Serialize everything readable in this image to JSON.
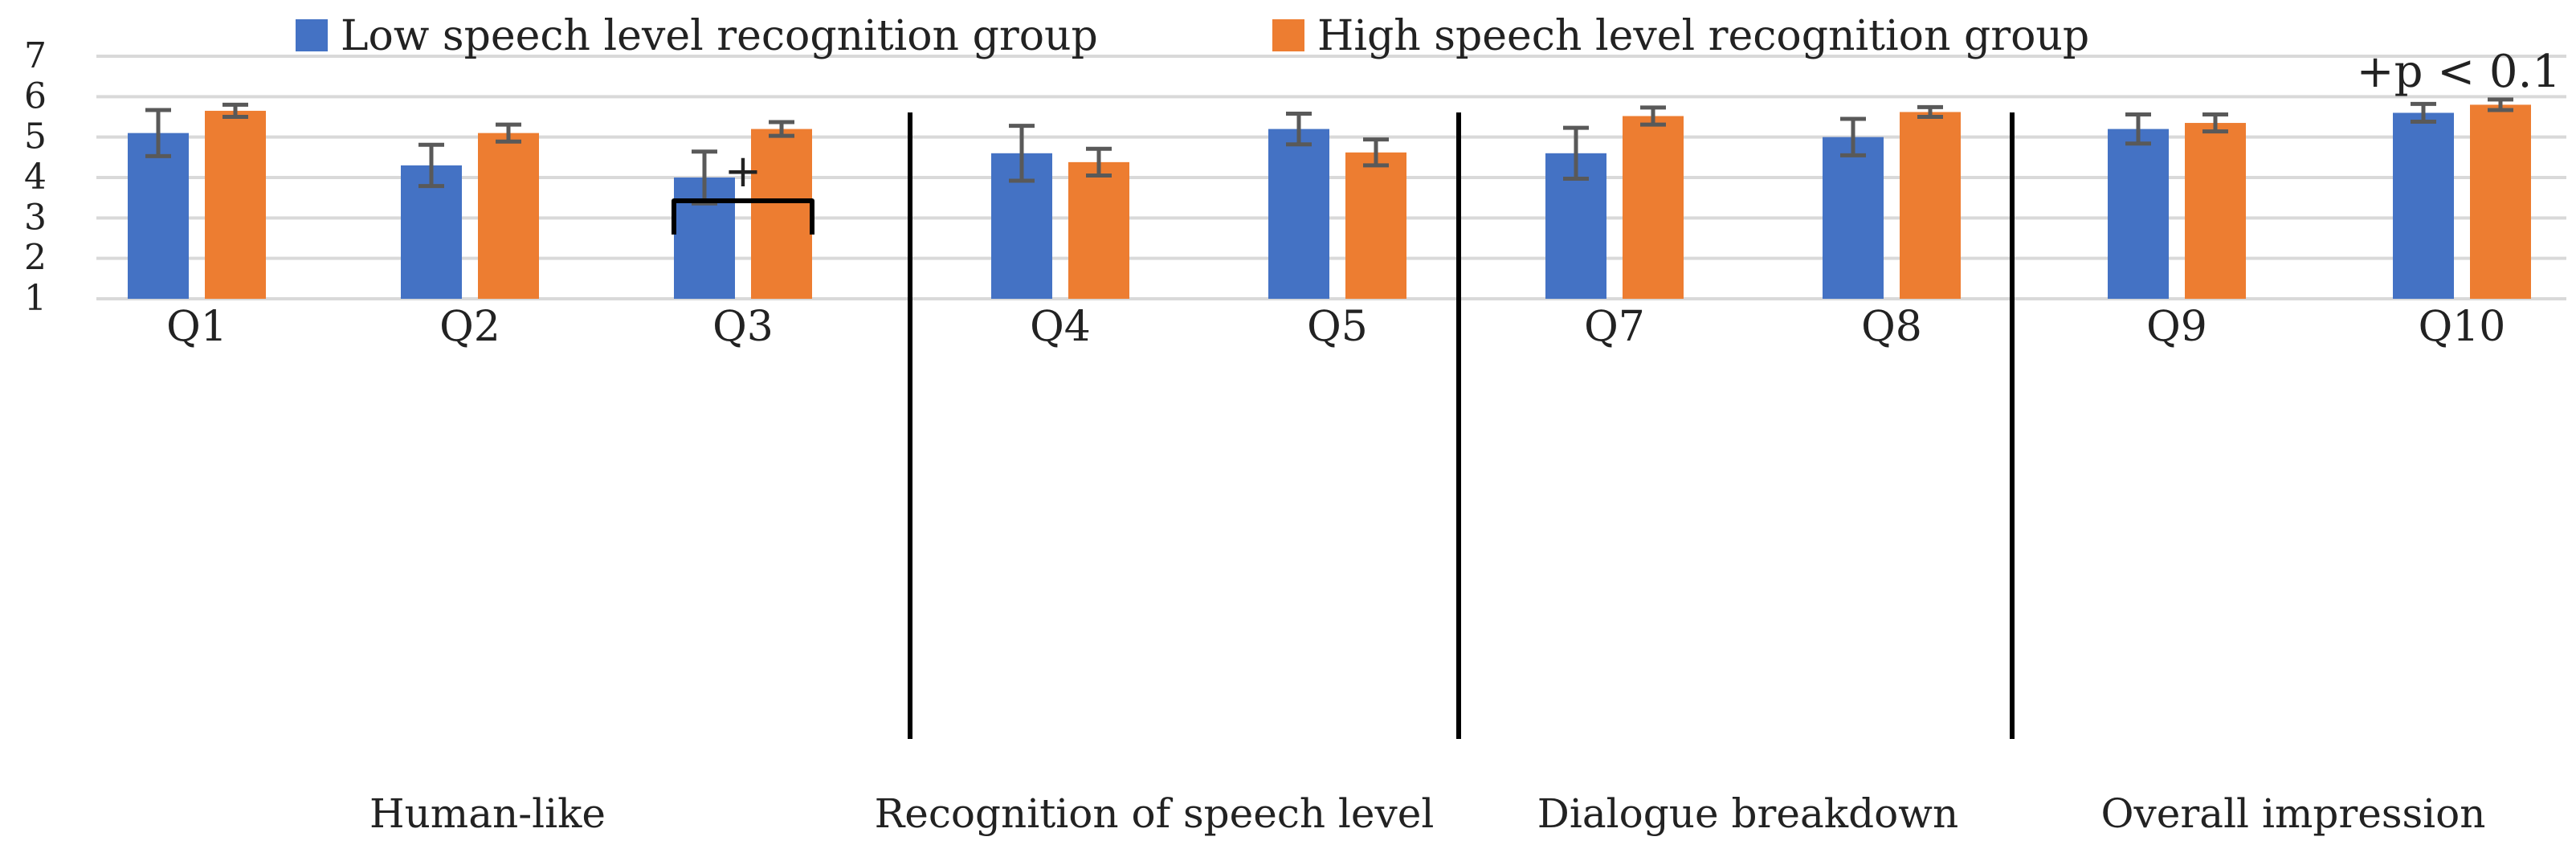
{
  "chart_data": {
    "type": "bar",
    "title": "",
    "xlabel": "",
    "ylabel": "",
    "ylim": [
      1,
      7
    ],
    "yticks": [
      "1",
      "2",
      "3",
      "4",
      "5",
      "6",
      "7"
    ],
    "grid": true,
    "legend_position": "top-center",
    "significance_note": "+p < 0.1",
    "categories": [
      "Q1",
      "Q2",
      "Q3",
      "Q4",
      "Q5",
      "Q7",
      "Q8",
      "Q9",
      "Q10"
    ],
    "series": [
      {
        "name": "Low speech level recognition group",
        "color": "#4472c4",
        "values": [
          5.1,
          4.3,
          4.0,
          4.6,
          5.2,
          4.6,
          5.0,
          5.2,
          5.6
        ],
        "error": [
          0.57,
          0.51,
          0.64,
          0.68,
          0.38,
          0.63,
          0.45,
          0.36,
          0.22
        ]
      },
      {
        "name": "High speech level recognition group",
        "color": "#ed7d31",
        "values": [
          5.65,
          5.1,
          5.2,
          4.38,
          4.62,
          5.52,
          5.62,
          5.35,
          5.8
        ],
        "error": [
          0.15,
          0.21,
          0.17,
          0.33,
          0.32,
          0.21,
          0.12,
          0.21,
          0.13
        ]
      }
    ],
    "groups": [
      {
        "label": "Human-like",
        "members": [
          "Q1",
          "Q2",
          "Q3"
        ]
      },
      {
        "label": "Recognition of speech level",
        "members": [
          "Q4",
          "Q5"
        ]
      },
      {
        "label": "Dialogue breakdown",
        "members": [
          "Q7",
          "Q8"
        ]
      },
      {
        "label": "Overall impression",
        "members": [
          "Q9",
          "Q10"
        ]
      }
    ],
    "annotations": [
      {
        "text": "+",
        "category": "Q3",
        "type": "significance-bracket"
      }
    ]
  }
}
